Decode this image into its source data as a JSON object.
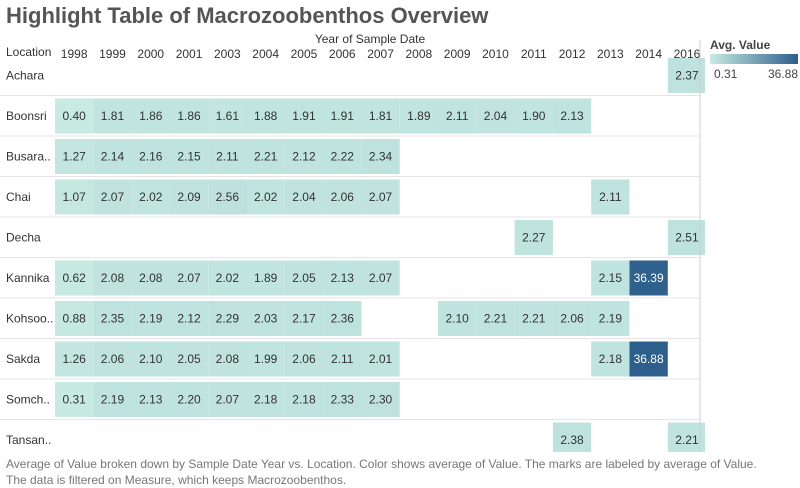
{
  "title": "Highlight Table of Macrozoobenthos Overview",
  "column_header_title": "Year of Sample Date",
  "row_header_title": "Location",
  "legend": {
    "title": "Avg. Value",
    "min": "0.31",
    "max": "36.88"
  },
  "colors": {
    "low": "#c7eae2",
    "high": "#2d5f8c"
  },
  "footer": "Average of Value broken down by Sample Date Year vs. Location.  Color shows average of Value.  The marks are labeled by average of Value. The data is filtered on Measure, which keeps Macrozoobenthos.",
  "chart_data": {
    "type": "heatmap",
    "title": "Highlight Table of Macrozoobenthos Overview",
    "xlabel": "Year of Sample Date",
    "ylabel": "Location",
    "x": [
      "1998",
      "1999",
      "2000",
      "2001",
      "2003",
      "2004",
      "2005",
      "2006",
      "2007",
      "2008",
      "2009",
      "2010",
      "2011",
      "2012",
      "2013",
      "2014",
      "2016"
    ],
    "y": [
      "Achara",
      "Boonsri",
      "Busara..",
      "Chai",
      "Decha",
      "Kannika",
      "Kohsoo..",
      "Sakda",
      "Somch..",
      "Tansan.."
    ],
    "values": [
      [
        null,
        null,
        null,
        null,
        null,
        null,
        null,
        null,
        null,
        null,
        null,
        null,
        null,
        null,
        null,
        null,
        2.37
      ],
      [
        0.4,
        1.81,
        1.86,
        1.86,
        1.61,
        1.88,
        1.91,
        1.91,
        1.81,
        1.89,
        2.11,
        2.04,
        1.9,
        2.13,
        null,
        null,
        null
      ],
      [
        1.27,
        2.14,
        2.16,
        2.15,
        2.11,
        2.21,
        2.12,
        2.22,
        2.34,
        null,
        null,
        null,
        null,
        null,
        null,
        null,
        null
      ],
      [
        1.07,
        2.07,
        2.02,
        2.09,
        2.56,
        2.02,
        2.04,
        2.06,
        2.07,
        null,
        null,
        null,
        null,
        null,
        2.11,
        null,
        null
      ],
      [
        null,
        null,
        null,
        null,
        null,
        null,
        null,
        null,
        null,
        null,
        null,
        null,
        2.27,
        null,
        null,
        null,
        2.51
      ],
      [
        0.62,
        2.08,
        2.08,
        2.07,
        2.02,
        1.89,
        2.05,
        2.13,
        2.07,
        null,
        null,
        null,
        null,
        null,
        2.15,
        36.39,
        null
      ],
      [
        0.88,
        2.35,
        2.19,
        2.12,
        2.29,
        2.03,
        2.17,
        2.36,
        null,
        null,
        2.1,
        2.21,
        2.21,
        2.06,
        2.19,
        null,
        null
      ],
      [
        1.26,
        2.06,
        2.1,
        2.05,
        2.08,
        1.99,
        2.06,
        2.11,
        2.01,
        null,
        null,
        null,
        null,
        null,
        2.18,
        36.88,
        null
      ],
      [
        0.31,
        2.19,
        2.13,
        2.2,
        2.07,
        2.18,
        2.18,
        2.33,
        2.3,
        null,
        null,
        null,
        null,
        null,
        null,
        null,
        null
      ],
      [
        null,
        null,
        null,
        null,
        null,
        null,
        null,
        null,
        null,
        null,
        null,
        null,
        null,
        2.38,
        null,
        null,
        2.21
      ]
    ],
    "range": [
      0.31,
      36.88
    ],
    "grid": false,
    "legend": "top-right"
  }
}
